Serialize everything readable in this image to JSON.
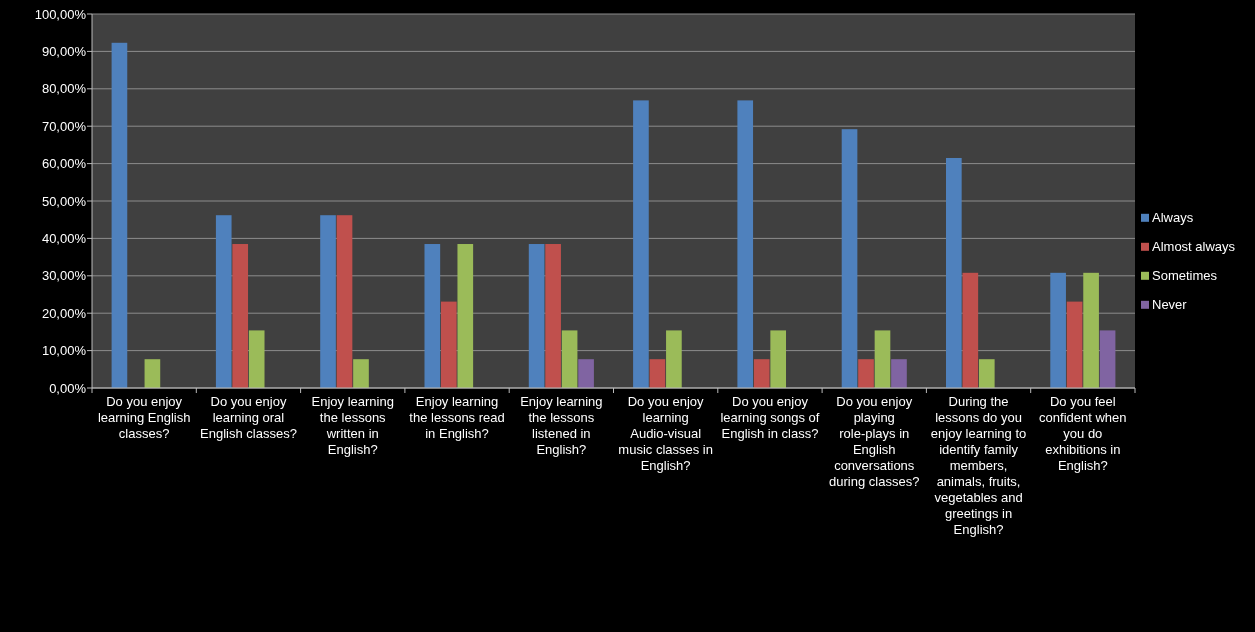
{
  "chart_data": {
    "type": "bar",
    "categories": [
      "Do you enjoy learning English classes?",
      "Do you enjoy learning oral English classes?",
      "Enjoy learning the lessons written in English?",
      "Enjoy learning the lessons read in English?",
      "Enjoy learning the lessons listened in English?",
      "Do you enjoy learning Audio-visual music classes in English?",
      "Do you enjoy learning songs of English in class?",
      "Do you enjoy playing role-plays in English conversations during classes?",
      "During the lessons do you enjoy learning to identify family members, animals, fruits, vegetables and greetings in English?",
      "Do you feel confident when you do exhibitions in English?"
    ],
    "series": [
      {
        "name": "Always",
        "color": "#4f81bd",
        "values": [
          92.3,
          46.2,
          46.2,
          38.5,
          38.5,
          76.9,
          76.9,
          69.2,
          61.5,
          30.8
        ]
      },
      {
        "name": "Almost always",
        "color": "#c0504d",
        "values": [
          0,
          38.5,
          46.2,
          23.1,
          38.5,
          7.7,
          7.7,
          7.7,
          30.8,
          23.1
        ]
      },
      {
        "name": "Sometimes",
        "color": "#9bbb59",
        "values": [
          7.7,
          15.4,
          7.7,
          38.5,
          15.4,
          15.4,
          15.4,
          15.4,
          7.7,
          30.8
        ]
      },
      {
        "name": "Never",
        "color": "#8064a2",
        "values": [
          0,
          0,
          0,
          0,
          7.7,
          0,
          0,
          7.7,
          0,
          15.4
        ]
      }
    ],
    "ylim": [
      0,
      100
    ],
    "yticks": [
      {
        "value": 0,
        "label": "0,00%"
      },
      {
        "value": 10,
        "label": "10,00%"
      },
      {
        "value": 20,
        "label": "20,00%"
      },
      {
        "value": 30,
        "label": "30,00%"
      },
      {
        "value": 40,
        "label": "40,00%"
      },
      {
        "value": 50,
        "label": "50,00%"
      },
      {
        "value": 60,
        "label": "60,00%"
      },
      {
        "value": 70,
        "label": "70,00%"
      },
      {
        "value": 80,
        "label": "80,00%"
      },
      {
        "value": 90,
        "label": "90,00%"
      },
      {
        "value": 100,
        "label": "100,00%"
      }
    ],
    "grid": "y",
    "legend": "right"
  }
}
